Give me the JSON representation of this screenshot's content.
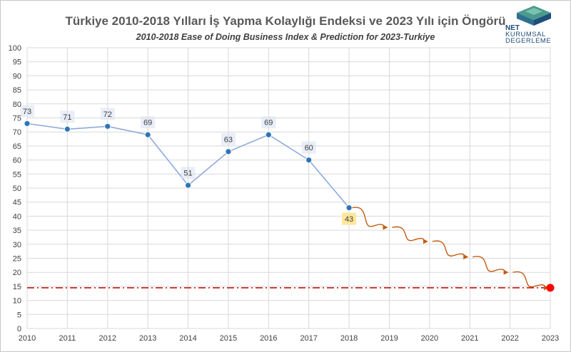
{
  "chart_data": {
    "type": "line",
    "title": "Türkiye 2010-2018 Yılları İş Yapma Kolaylığı Endeksi ve 2023 Yılı için Öngörü",
    "subtitle": "2010-2018 Ease of Doing Business Index & Prediction for 2023-Turkiye",
    "xlabel": "",
    "ylabel": "",
    "x": [
      2010,
      2011,
      2012,
      2013,
      2014,
      2015,
      2016,
      2017,
      2018,
      2019,
      2020,
      2021,
      2022,
      2023
    ],
    "ylim": [
      0,
      100
    ],
    "ytick_step": 5,
    "grid": true,
    "series": [
      {
        "x": [
          2010,
          2011,
          2012,
          2013,
          2014,
          2015,
          2016,
          2017,
          2018
        ],
        "values": [
          73,
          71,
          72,
          69,
          51,
          63,
          69,
          60,
          43
        ],
        "color": "#8faadc",
        "marker_color": "#2e75b6"
      }
    ],
    "prediction": {
      "x": [
        2018,
        2019,
        2020,
        2021,
        2022,
        2023
      ],
      "values": [
        43,
        36,
        31,
        25.5,
        20,
        14.5
      ],
      "color": "#c55a11"
    },
    "reference_line": {
      "value": 14.5,
      "color": "#c00000",
      "style": "dash-dot"
    },
    "end_point": {
      "x": 2023,
      "value": 14.5,
      "color": "#ff0000"
    },
    "highlight_label_index": 8,
    "highlight_color": "#ffe699",
    "label_bg_color": "#dae3f3"
  },
  "logo": {
    "line1": "NET",
    "line2": "KURUMSAL",
    "line3": "DEGERLEME"
  }
}
